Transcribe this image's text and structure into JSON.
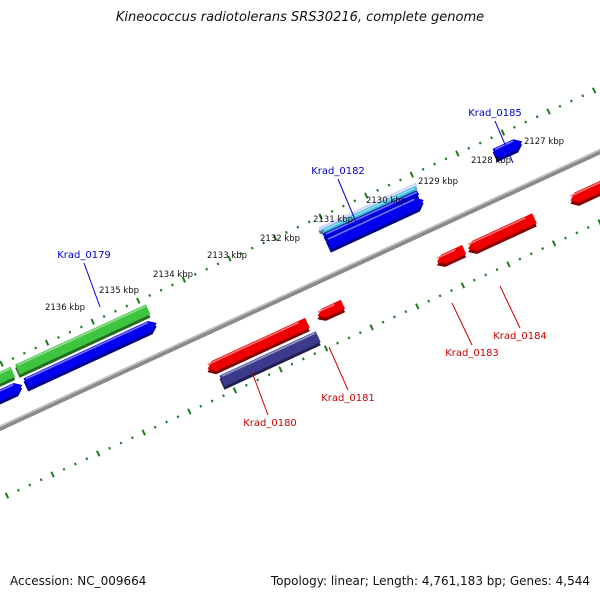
{
  "title": "Kineococcus radiotolerans SRS30216, complete genome",
  "footer": {
    "accession": "Accession: NC_009664",
    "summary": "Topology: linear; Length: 4,761,183 bp; Genes: 4,544"
  },
  "scale_labels": [
    "2127 kbp",
    "2128 kbp",
    "2129 kbp",
    "2130 kbp",
    "2131 kbp",
    "2132 kbp",
    "2133 kbp",
    "2134 kbp",
    "2135 kbp",
    "2136 kbp"
  ],
  "gene_labels": {
    "krad_0179": "Krad_0179",
    "krad_0180": "Krad_0180",
    "krad_0181": "Krad_0181",
    "krad_0182": "Krad_0182",
    "krad_0183": "Krad_0183",
    "krad_0184": "Krad_0184",
    "krad_0185": "Krad_0185"
  },
  "colors": {
    "backbone": "#8a8a8a",
    "tick": "#1e7a1e",
    "forward_cds": "#0000ee",
    "gene": "#3fc43f",
    "reverse_cds": "#ee0000",
    "dark_feature": "#3c3a8c",
    "cyan_feature": "#33bbdd",
    "label_forward": "#0000cc",
    "label_reverse": "#cc0000"
  }
}
